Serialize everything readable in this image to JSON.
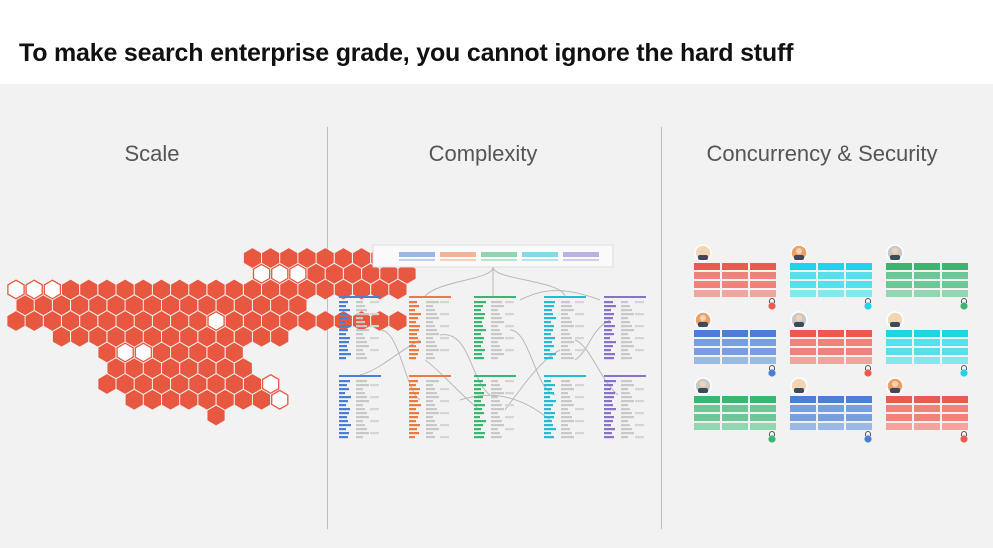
{
  "title": "To make search enterprise grade, you cannot ignore the hard stuff",
  "columns": [
    {
      "label": "Scale",
      "illustration": "hexagon-cluster"
    },
    {
      "label": "Complexity",
      "illustration": "connected-schema-tables"
    },
    {
      "label": "Concurrency & Security",
      "illustration": "user-tables-with-locks"
    }
  ],
  "colors": {
    "hex": "#e8573f",
    "blue": "#4a7fd4",
    "orange": "#ec7a45",
    "green": "#3ab673",
    "teal": "#25bcd1",
    "purple": "#8a72c8",
    "red": "#ea5a4e",
    "cyan": "#1fd4e4"
  }
}
